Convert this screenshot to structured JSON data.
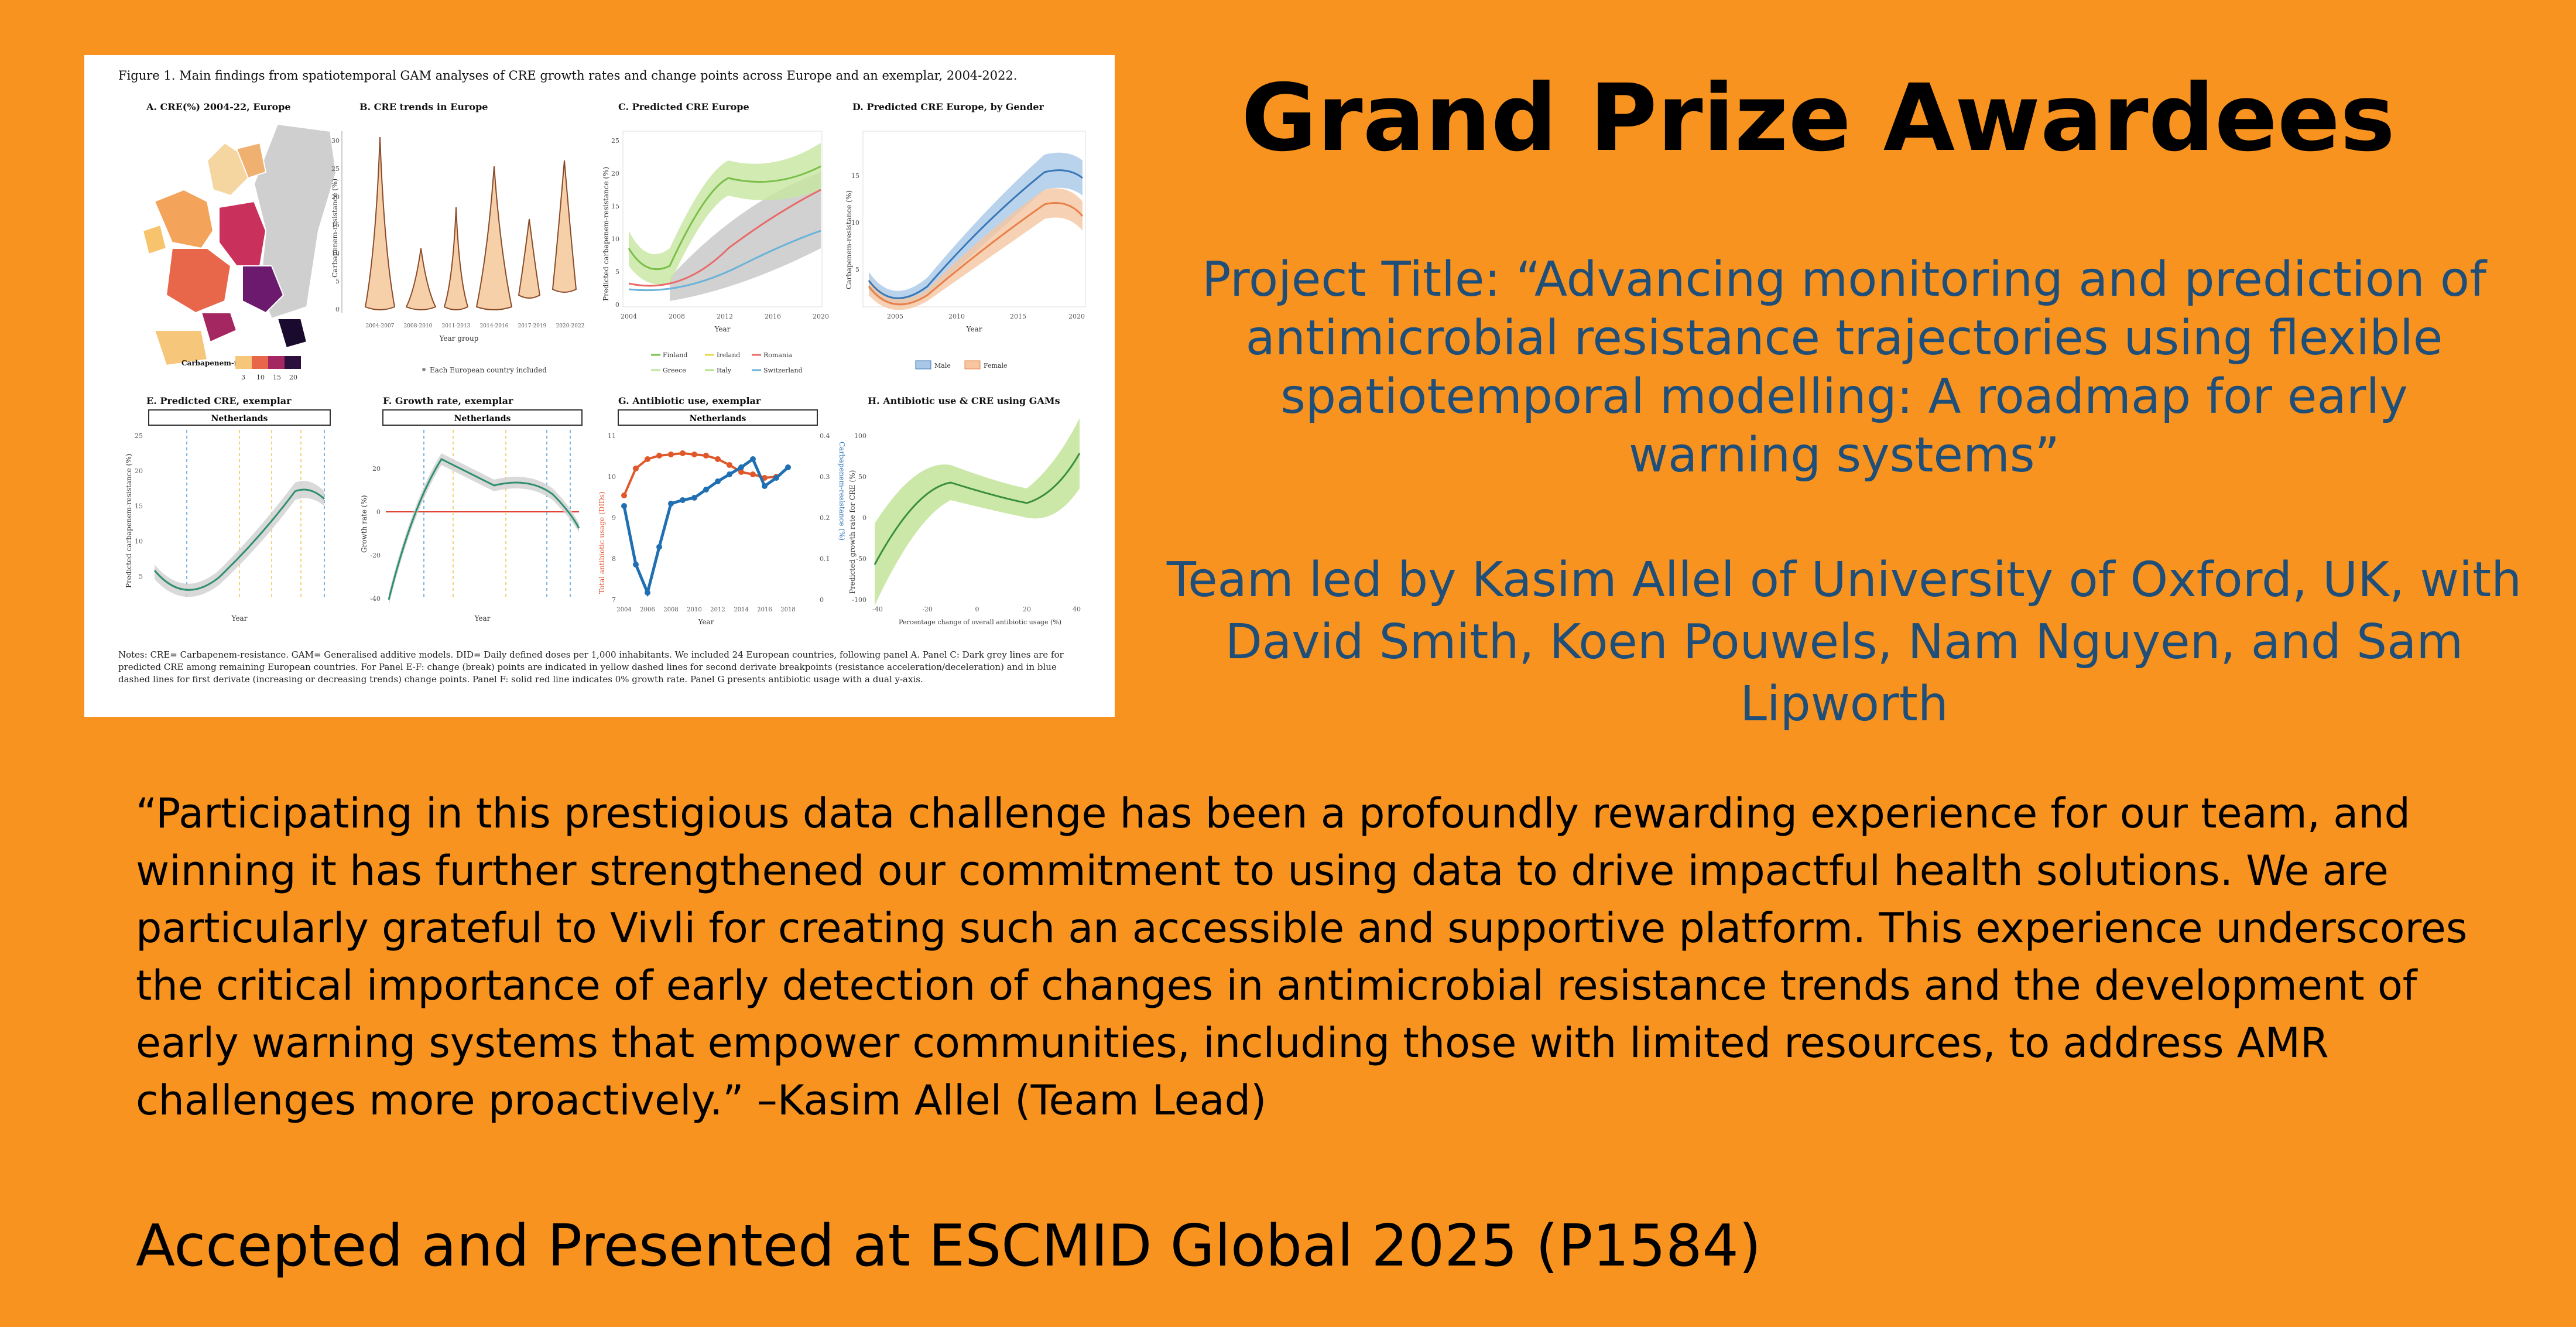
{
  "slide": {
    "title": "Grand Prize Awardees",
    "project_title": "Project Title: “Advancing monitoring and prediction of antimicrobial resistance trajectories using flexible spatiotemporal modelling: A roadmap for early warning systems”",
    "team": "Team led by Kasim Allel of University of Oxford, UK, with David Smith, Koen Pouwels, Nam Nguyen, and Sam Lipworth",
    "quote": "“Participating in this prestigious data challenge has been a profoundly rewarding experience for our team, and winning it has further strengthened our commitment to using data to drive impactful health solutions. We are particularly grateful to Vivli for creating such an accessible and supportive platform. This experience underscores the critical importance of early detection of changes in antimicrobial resistance trends and the development of early warning systems that empower communities, including those with limited resources, to address AMR challenges more proactively.” –Kasim Allel (Team Lead)",
    "accepted": "Accepted and Presented at ESCMID Global 2025 (P1584)"
  },
  "figure": {
    "caption": "Figure 1. Main findings from spatiotemporal GAM analyses of CRE growth rates and change points across Europe and an exemplar, 2004-2022.",
    "panels": {
      "a": {
        "title": "A. CRE(%) 2004-22, Europe",
        "legend_title": "Carbapenem-resistance (%)",
        "legend_ticks": [
          "3",
          "10",
          "15",
          "20"
        ]
      },
      "b": {
        "title": "B. CRE trends in Europe",
        "ylabel": "Carbapenem-resistance (%)",
        "xlabel": "Year group",
        "legend": "Each European country included",
        "ticks_x": [
          "2004-2007",
          "2008-2010",
          "2011-2013",
          "2014-2016",
          "2017-2019",
          "2020-2022"
        ],
        "ticks_y": [
          "30",
          "25",
          "20",
          "15",
          "10",
          "5",
          "0"
        ]
      },
      "c": {
        "title": "C. Predicted CRE Europe",
        "ylabel": "Predicted carbapenem-resistance (%)",
        "xlabel": "Year",
        "ticks_x": [
          "2004",
          "2008",
          "2012",
          "2016",
          "2020"
        ],
        "ticks_y": [
          "25",
          "20",
          "15",
          "10",
          "5",
          "0"
        ],
        "legend": [
          "Finland",
          "Ireland",
          "Romania",
          "Greece",
          "Italy",
          "Switzerland"
        ]
      },
      "d": {
        "title": "D. Predicted CRE Europe, by Gender",
        "ylabel": "Carbapenem-resistance (%)",
        "xlabel": "Year",
        "ticks_x": [
          "2005",
          "2010",
          "2015",
          "2020"
        ],
        "ticks_y": [
          "15",
          "10",
          "5"
        ],
        "legend": [
          "Male",
          "Female"
        ]
      },
      "e": {
        "title": "E. Predicted CRE, exemplar",
        "strip": "Netherlands",
        "ylabel": "Predicted carbapenem-resistance (%)",
        "xlabel": "Year",
        "ticks_y": [
          "25",
          "20",
          "15",
          "10",
          "5"
        ]
      },
      "f": {
        "title": "F. Growth rate, exemplar",
        "strip": "Netherlands",
        "ylabel": "Growth rate (%)",
        "xlabel": "Year",
        "ticks_y": [
          "20",
          "0",
          "-20",
          "-40"
        ]
      },
      "g": {
        "title": "G. Antibiotic use, exemplar",
        "strip": "Netherlands",
        "ylabel_left": "Total antibiotic usage (DIDs)",
        "ylabel_right": "Carbapenem-resistance (%)",
        "xlabel": "Year",
        "ticks_x": [
          "2004",
          "2006",
          "2008",
          "2010",
          "2012",
          "2014",
          "2016",
          "2018"
        ],
        "ticks_y": [
          "11",
          "10",
          "9",
          "8",
          "7"
        ],
        "ticks_y_right": [
          "0.4",
          "0.3",
          "0.2",
          "0.1",
          "0"
        ]
      },
      "h": {
        "title": "H. Antibiotic use & CRE using GAMs",
        "ylabel": "Predicted growth rate for CRE (%)",
        "xlabel": "Percentage change of overall antibiotic usage (%)",
        "ticks_x": [
          "-40",
          "-20",
          "0",
          "20",
          "40"
        ],
        "ticks_y": [
          "100",
          "50",
          "0",
          "-50",
          "-100"
        ]
      }
    },
    "notes": "Notes: CRE= Carbapenem-resistance. GAM= Generalised additive models. DID= Daily defined doses per 1,000 inhabitants. We included 24 European countries, following panel A. Panel C: Dark grey lines are for predicted CRE among remaining European countries. For Panel E-F: change (break) points are indicated in yellow dashed lines for second derivate breakpoints (resistance acceleration/deceleration) and in blue dashed lines for first derivate (increasing or decreasing trends) change points. Panel F: solid red line indicates 0% growth rate. Panel G presents antibiotic usage with a dual y-axis."
  }
}
